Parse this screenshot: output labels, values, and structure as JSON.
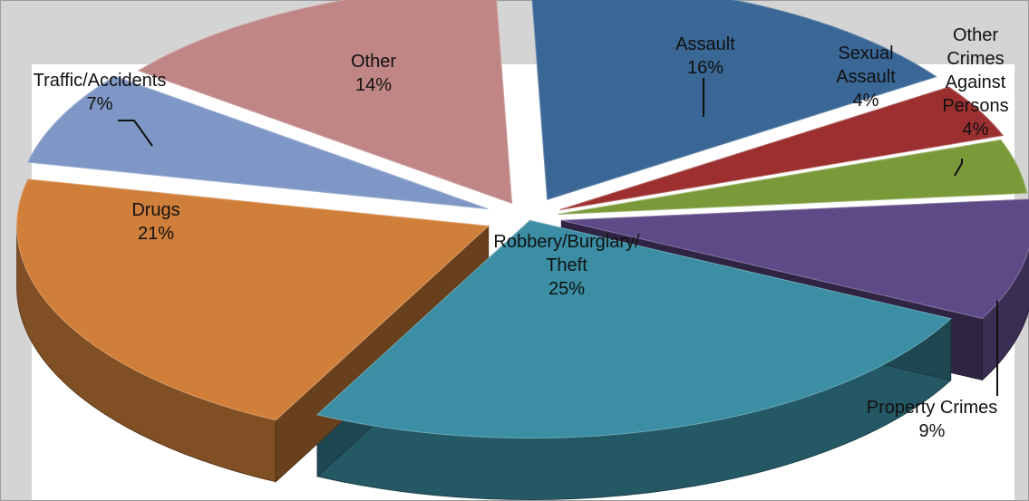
{
  "chart_data": {
    "type": "pie",
    "variant": "3d-exploded",
    "title": "",
    "legend": "none",
    "slices": [
      {
        "label": "Assault",
        "percent_label": "16%",
        "value": 16,
        "color": "#3a6796"
      },
      {
        "label": "Sexual Assault",
        "percent_label": "4%",
        "value": 4,
        "color": "#9c2f2f"
      },
      {
        "label": "Other Crimes Against Persons",
        "percent_label": "4%",
        "value": 4,
        "color": "#7a9a3a"
      },
      {
        "label": "Property Crimes",
        "percent_label": "9%",
        "value": 9,
        "color": "#5e4a86"
      },
      {
        "label": "Robbery/Burglary/ Theft",
        "percent_label": "25%",
        "value": 25,
        "color": "#3b8ea3"
      },
      {
        "label": "Drugs",
        "percent_label": "21%",
        "value": 21,
        "color": "#d07f3a"
      },
      {
        "label": "Traffic/Accidents",
        "percent_label": "7%",
        "value": 7,
        "color": "#7f97c6"
      },
      {
        "label": "Other",
        "percent_label": "14%",
        "value": 14,
        "color": "#c08686"
      }
    ]
  }
}
